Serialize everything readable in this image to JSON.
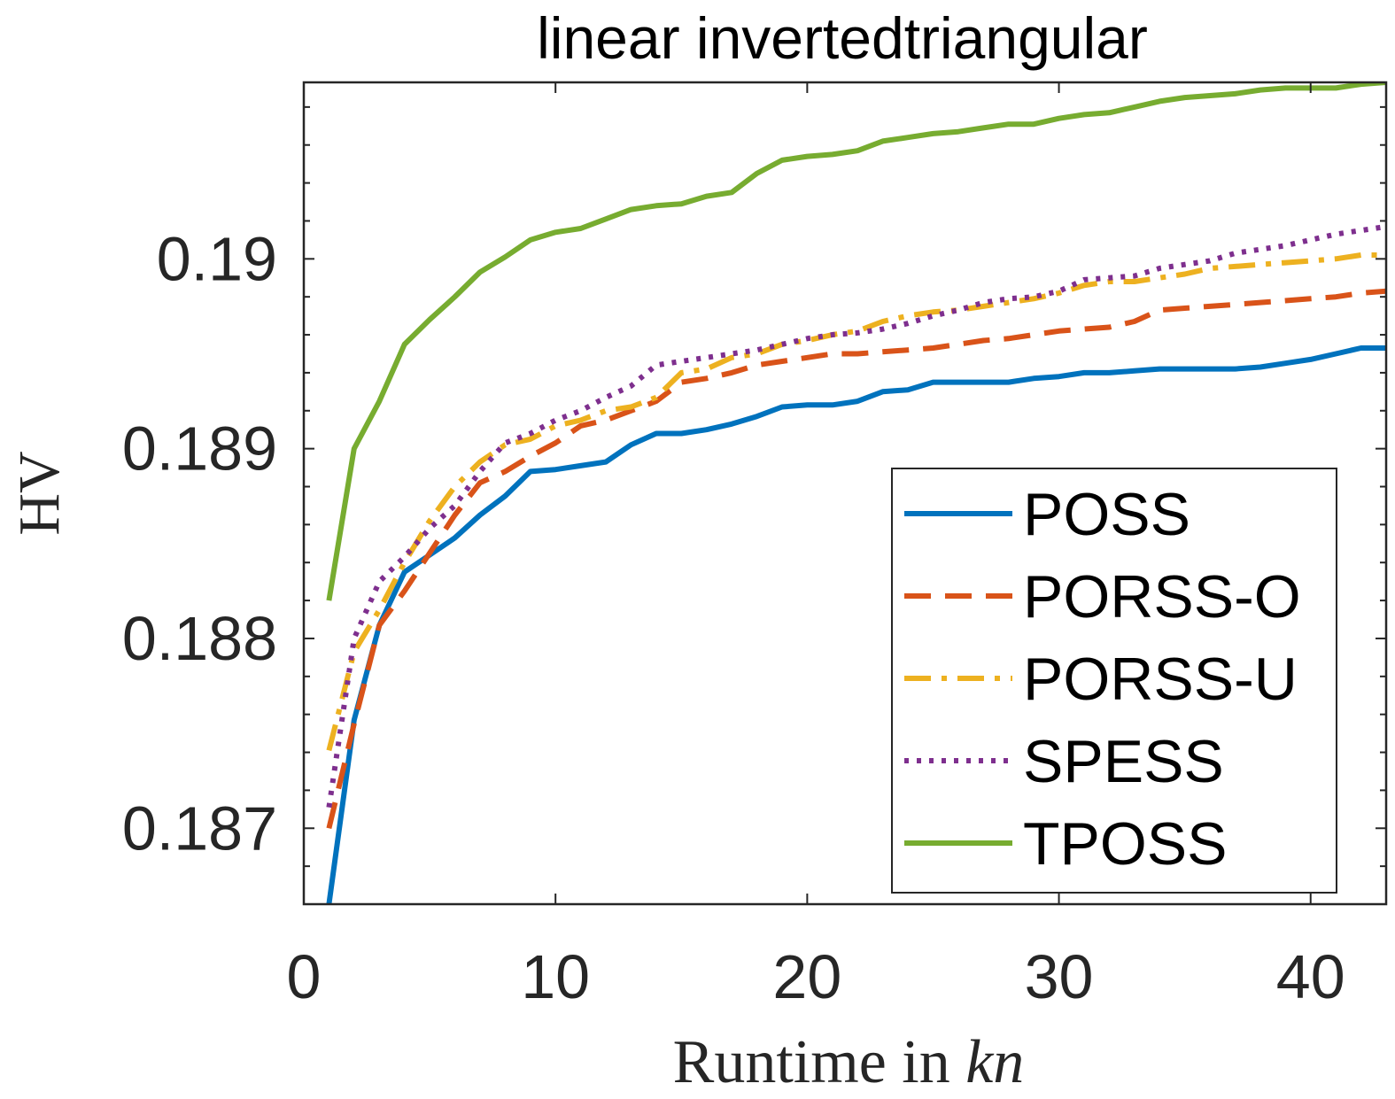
{
  "chart_data": {
    "type": "line",
    "title": "linear invertedtriangular",
    "xlabel_main": "Runtime in ",
    "xlabel_math": "kn",
    "ylabel": "HV",
    "xlim": [
      0,
      43
    ],
    "ylim": [
      0.1866,
      0.19093
    ],
    "x_ticks": [
      0,
      10,
      20,
      30,
      40
    ],
    "x_tick_labels": [
      "0",
      "10",
      "20",
      "30",
      "40"
    ],
    "y_ticks": [
      0.187,
      0.188,
      0.189,
      0.19
    ],
    "y_tick_labels": [
      "0.187",
      "0.188",
      "0.189",
      "0.19"
    ],
    "grid": false,
    "legend_position": "bottom-right",
    "series": [
      {
        "name": "POSS",
        "color": "#0072BD",
        "dash": "solid",
        "x": [
          1,
          2,
          3,
          4,
          5,
          6,
          7,
          8,
          9,
          10,
          11,
          12,
          13,
          14,
          15,
          16,
          17,
          18,
          19,
          20,
          21,
          22,
          23,
          24,
          25,
          26,
          27,
          28,
          29,
          30,
          31,
          32,
          33,
          34,
          35,
          36,
          37,
          38,
          39,
          40,
          41,
          42,
          43
        ],
        "y": [
          0.1866,
          0.18757,
          0.18807,
          0.18835,
          0.18844,
          0.18853,
          0.18865,
          0.18875,
          0.18888,
          0.18889,
          0.18891,
          0.18893,
          0.18902,
          0.18908,
          0.18908,
          0.1891,
          0.18913,
          0.18917,
          0.18922,
          0.18923,
          0.18923,
          0.18925,
          0.1893,
          0.18931,
          0.18935,
          0.18935,
          0.18935,
          0.18935,
          0.18937,
          0.18938,
          0.1894,
          0.1894,
          0.18941,
          0.18942,
          0.18942,
          0.18942,
          0.18942,
          0.18943,
          0.18945,
          0.18947,
          0.1895,
          0.18953,
          0.18953
        ]
      },
      {
        "name": "PORSS-O",
        "color": "#D95319",
        "dash": "dashed",
        "x": [
          1,
          2,
          3,
          4,
          5,
          6,
          7,
          8,
          9,
          10,
          11,
          12,
          13,
          14,
          15,
          16,
          17,
          18,
          19,
          20,
          21,
          22,
          23,
          24,
          25,
          26,
          27,
          28,
          29,
          30,
          31,
          32,
          33,
          34,
          35,
          36,
          37,
          38,
          39,
          40,
          41,
          42,
          43
        ],
        "y": [
          0.187,
          0.18755,
          0.18807,
          0.18825,
          0.18845,
          0.18865,
          0.18882,
          0.18888,
          0.18896,
          0.18903,
          0.18912,
          0.18915,
          0.1892,
          0.18925,
          0.18935,
          0.18937,
          0.1894,
          0.18944,
          0.18946,
          0.18948,
          0.1895,
          0.1895,
          0.18951,
          0.18952,
          0.18953,
          0.18955,
          0.18957,
          0.18958,
          0.1896,
          0.18962,
          0.18963,
          0.18964,
          0.18967,
          0.18973,
          0.18974,
          0.18975,
          0.18976,
          0.18977,
          0.18978,
          0.18979,
          0.1898,
          0.18982,
          0.18983
        ]
      },
      {
        "name": "PORSS-U",
        "color": "#EDB120",
        "dash": "dashdot",
        "x": [
          1,
          2,
          3,
          4,
          5,
          6,
          7,
          8,
          9,
          10,
          11,
          12,
          13,
          14,
          15,
          16,
          17,
          18,
          19,
          20,
          21,
          22,
          23,
          24,
          25,
          26,
          27,
          28,
          29,
          30,
          31,
          32,
          33,
          34,
          35,
          36,
          37,
          38,
          39,
          40,
          41,
          42,
          43
        ],
        "y": [
          0.18741,
          0.18793,
          0.18815,
          0.1884,
          0.18862,
          0.1888,
          0.18893,
          0.18902,
          0.18905,
          0.18912,
          0.18915,
          0.1892,
          0.18922,
          0.18927,
          0.1894,
          0.18942,
          0.18948,
          0.1895,
          0.18955,
          0.18957,
          0.1896,
          0.18962,
          0.18967,
          0.1897,
          0.18972,
          0.18973,
          0.18975,
          0.18977,
          0.18979,
          0.18982,
          0.18986,
          0.18988,
          0.18988,
          0.1899,
          0.18992,
          0.18995,
          0.18996,
          0.18997,
          0.18998,
          0.18999,
          0.19,
          0.19002,
          0.19002
        ]
      },
      {
        "name": "SPESS",
        "color": "#7E2F8E",
        "dash": "dotted",
        "x": [
          1,
          2,
          3,
          4,
          5,
          6,
          7,
          8,
          9,
          10,
          11,
          12,
          13,
          14,
          15,
          16,
          17,
          18,
          19,
          20,
          21,
          22,
          23,
          24,
          25,
          26,
          27,
          28,
          29,
          30,
          31,
          32,
          33,
          34,
          35,
          36,
          37,
          38,
          39,
          40,
          41,
          42,
          43
        ],
        "y": [
          0.18711,
          0.188,
          0.1883,
          0.18843,
          0.18858,
          0.1887,
          0.18888,
          0.18903,
          0.18908,
          0.18915,
          0.1892,
          0.18927,
          0.18933,
          0.18944,
          0.18946,
          0.18948,
          0.1895,
          0.18952,
          0.18955,
          0.18958,
          0.1896,
          0.18961,
          0.18963,
          0.18966,
          0.1897,
          0.18973,
          0.18977,
          0.18979,
          0.1898,
          0.18983,
          0.18989,
          0.1899,
          0.18991,
          0.18995,
          0.18997,
          0.18999,
          0.19003,
          0.19005,
          0.19007,
          0.1901,
          0.19013,
          0.19015,
          0.19017
        ]
      },
      {
        "name": "TPOSS",
        "color": "#77AC30",
        "dash": "solid",
        "x": [
          1,
          2,
          3,
          4,
          5,
          6,
          7,
          8,
          9,
          10,
          11,
          12,
          13,
          14,
          15,
          16,
          17,
          18,
          19,
          20,
          21,
          22,
          23,
          24,
          25,
          26,
          27,
          28,
          29,
          30,
          31,
          32,
          33,
          34,
          35,
          36,
          37,
          38,
          39,
          40,
          41,
          42,
          43
        ],
        "y": [
          0.1882,
          0.189,
          0.18925,
          0.18955,
          0.18968,
          0.1898,
          0.18993,
          0.19001,
          0.1901,
          0.19014,
          0.19016,
          0.19021,
          0.19026,
          0.19028,
          0.19029,
          0.19033,
          0.19035,
          0.19045,
          0.19052,
          0.19054,
          0.19055,
          0.19057,
          0.19062,
          0.19064,
          0.19066,
          0.19067,
          0.19069,
          0.19071,
          0.19071,
          0.19074,
          0.19076,
          0.19077,
          0.1908,
          0.19083,
          0.19085,
          0.19086,
          0.19087,
          0.19089,
          0.1909,
          0.1909,
          0.1909,
          0.19092,
          0.19093
        ]
      }
    ]
  }
}
